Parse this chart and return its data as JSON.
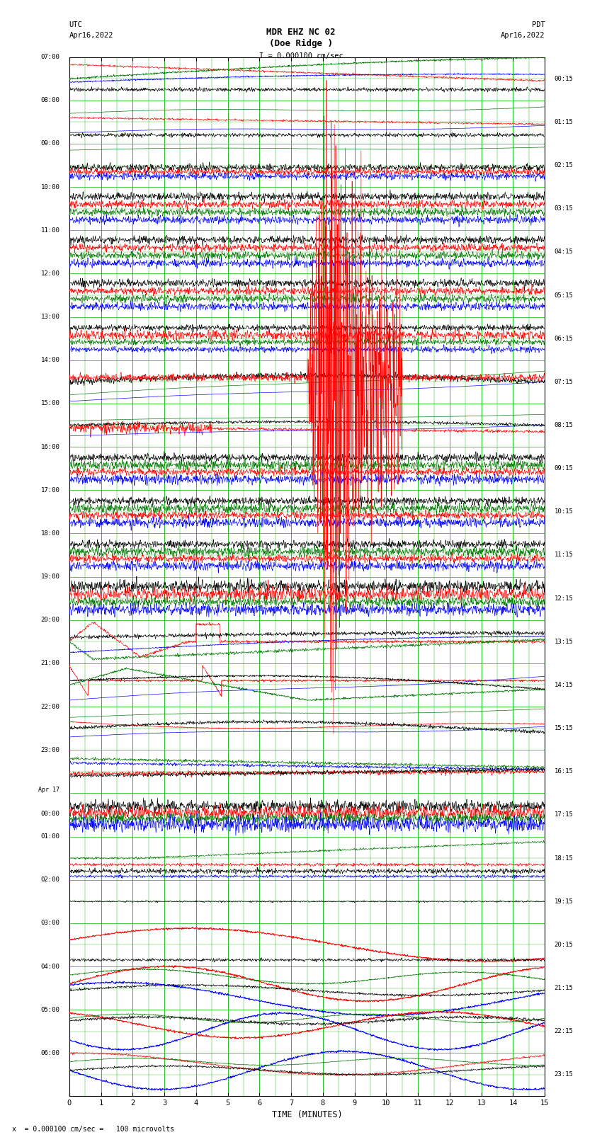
{
  "title_line1": "MDR EHZ NC 02",
  "title_line2": "(Doe Ridge )",
  "scale_label": "I = 0.000100 cm/sec",
  "utc_label": "UTC",
  "utc_date": "Apr16,2022",
  "pdt_label": "PDT",
  "pdt_date": "Apr16,2022",
  "xlabel": "TIME (MINUTES)",
  "footer_note": "x  = 0.000100 cm/sec =   100 microvolts",
  "background_color": "#ffffff",
  "grid_color": "#00bb00",
  "utc_times_left": [
    "07:00",
    "08:00",
    "09:00",
    "10:00",
    "11:00",
    "12:00",
    "13:00",
    "14:00",
    "15:00",
    "16:00",
    "17:00",
    "18:00",
    "19:00",
    "20:00",
    "21:00",
    "22:00",
    "23:00",
    "Apr 17\n00:00",
    "01:00",
    "02:00",
    "03:00",
    "04:00",
    "05:00",
    "06:00"
  ],
  "pdt_times_right": [
    "00:15",
    "01:15",
    "02:15",
    "03:15",
    "04:15",
    "05:15",
    "06:15",
    "07:15",
    "08:15",
    "09:15",
    "10:15",
    "11:15",
    "12:15",
    "13:15",
    "14:15",
    "15:15",
    "16:15",
    "17:15",
    "18:15",
    "19:15",
    "20:15",
    "21:15",
    "22:15",
    "23:15"
  ],
  "fig_width": 8.5,
  "fig_height": 16.13,
  "dpi": 100
}
